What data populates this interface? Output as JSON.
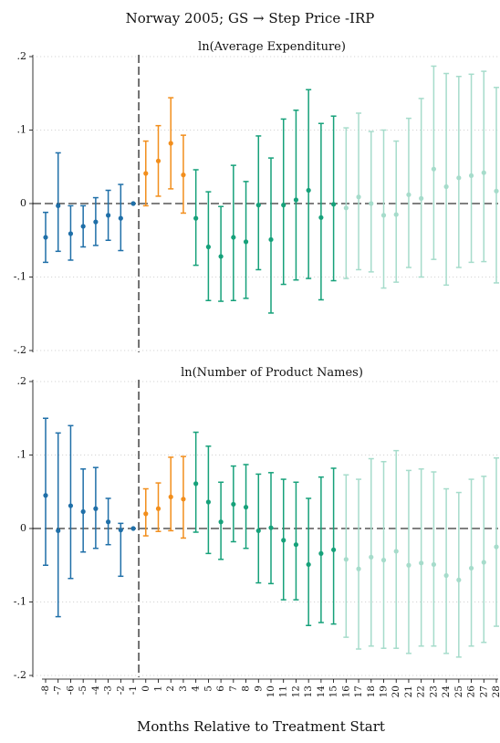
{
  "chart_data": {
    "type": "scatter",
    "title": "Norway 2005; GS → Step Price -IRP",
    "xlabel": "Months Relative to Treatment Start",
    "x": [
      -8,
      -7,
      -6,
      -5,
      -4,
      -3,
      -2,
      -1,
      0,
      1,
      2,
      3,
      4,
      5,
      6,
      7,
      8,
      9,
      10,
      11,
      12,
      13,
      14,
      15,
      16,
      17,
      18,
      19,
      20,
      21,
      22,
      23,
      24,
      25,
      26,
      27,
      28
    ],
    "x_tick_labels": [
      "-8",
      "-7",
      "-6",
      "-5",
      "-4",
      "-3",
      "-2",
      "-1",
      "0",
      "1",
      "2",
      "3",
      "4",
      "5",
      "6",
      "7",
      "8",
      "9",
      "10",
      "11",
      "12",
      "13",
      "14",
      "15",
      "16",
      "17",
      "18",
      "19",
      "20",
      "21",
      "22",
      "23",
      "24",
      "25",
      "26",
      "27",
      "28"
    ],
    "treatment_line_x": -1,
    "colors": {
      "pre": "#1f6fa8",
      "early": "#f28e1c",
      "mid": "#16a17a",
      "late": "#a6dccb"
    },
    "color_groups": [
      {
        "group": "pre",
        "x_from": -8,
        "x_to": -1
      },
      {
        "group": "early",
        "x_from": 0,
        "x_to": 3
      },
      {
        "group": "mid",
        "x_from": 4,
        "x_to": 15
      },
      {
        "group": "late",
        "x_from": 16,
        "x_to": 28
      }
    ],
    "panels": [
      {
        "subtitle": "ln(Average Expenditure)",
        "ylim": [
          -0.2,
          0.2
        ],
        "yticks": [
          -0.2,
          -0.1,
          0,
          0.1,
          0.2
        ],
        "ytick_labels": [
          "-.2",
          "-.1",
          "0",
          ".1",
          ".2"
        ],
        "estimate": [
          -0.046,
          -0.003,
          -0.041,
          -0.031,
          -0.025,
          -0.016,
          -0.02,
          0.0,
          0.041,
          0.058,
          0.082,
          0.039,
          -0.02,
          -0.059,
          -0.072,
          -0.046,
          -0.052,
          -0.002,
          -0.049,
          -0.002,
          0.005,
          0.018,
          -0.019,
          -0.001,
          -0.006,
          0.009,
          0.0,
          -0.016,
          -0.015,
          0.012,
          0.007,
          0.047,
          0.023,
          0.035,
          0.038,
          0.042,
          0.017
        ],
        "ci_lower": [
          -0.08,
          -0.065,
          -0.077,
          -0.059,
          -0.057,
          -0.05,
          -0.064,
          0.0,
          -0.003,
          0.01,
          0.02,
          -0.013,
          -0.084,
          -0.132,
          -0.133,
          -0.132,
          -0.129,
          -0.09,
          -0.149,
          -0.11,
          -0.104,
          -0.102,
          -0.131,
          -0.105,
          -0.102,
          -0.09,
          -0.093,
          -0.115,
          -0.107,
          -0.087,
          -0.1,
          -0.076,
          -0.111,
          -0.087,
          -0.08,
          -0.079,
          -0.108
        ],
        "ci_upper": [
          -0.012,
          0.069,
          -0.003,
          -0.003,
          0.008,
          0.018,
          0.026,
          0.0,
          0.085,
          0.106,
          0.144,
          0.093,
          0.046,
          0.016,
          -0.004,
          0.052,
          0.03,
          0.092,
          0.062,
          0.115,
          0.127,
          0.155,
          0.109,
          0.119,
          0.103,
          0.123,
          0.098,
          0.1,
          0.085,
          0.116,
          0.143,
          0.187,
          0.177,
          0.173,
          0.176,
          0.18,
          0.158
        ]
      },
      {
        "subtitle": "ln(Number of Product Names)",
        "ylim": [
          -0.2,
          0.2
        ],
        "yticks": [
          -0.2,
          -0.1,
          0,
          0.1,
          0.2
        ],
        "ytick_labels": [
          "-.2",
          "-.1",
          "0",
          ".1",
          ".2"
        ],
        "estimate": [
          0.045,
          -0.003,
          0.031,
          0.023,
          0.027,
          0.009,
          -0.002,
          0.0,
          0.02,
          0.027,
          0.043,
          0.04,
          0.061,
          0.036,
          0.009,
          0.033,
          0.029,
          -0.003,
          0.001,
          -0.016,
          -0.022,
          -0.049,
          -0.034,
          -0.029,
          -0.042,
          -0.055,
          -0.039,
          -0.043,
          -0.031,
          -0.05,
          -0.047,
          -0.049,
          -0.064,
          -0.07,
          -0.054,
          -0.046,
          -0.025
        ],
        "ci_lower": [
          -0.05,
          -0.12,
          -0.068,
          -0.032,
          -0.027,
          -0.022,
          -0.065,
          0.0,
          -0.01,
          -0.004,
          -0.003,
          -0.013,
          -0.005,
          -0.034,
          -0.042,
          -0.018,
          -0.027,
          -0.074,
          -0.075,
          -0.097,
          -0.097,
          -0.132,
          -0.128,
          -0.13,
          -0.148,
          -0.164,
          -0.16,
          -0.163,
          -0.163,
          -0.17,
          -0.16,
          -0.16,
          -0.17,
          -0.175,
          -0.16,
          -0.155,
          -0.133
        ],
        "ci_upper": [
          0.15,
          0.13,
          0.14,
          0.081,
          0.083,
          0.041,
          0.007,
          0.0,
          0.054,
          0.062,
          0.097,
          0.098,
          0.131,
          0.112,
          0.063,
          0.085,
          0.087,
          0.074,
          0.076,
          0.067,
          0.063,
          0.041,
          0.07,
          0.082,
          0.073,
          0.067,
          0.095,
          0.091,
          0.106,
          0.079,
          0.081,
          0.077,
          0.054,
          0.049,
          0.067,
          0.071,
          0.096
        ]
      }
    ]
  }
}
